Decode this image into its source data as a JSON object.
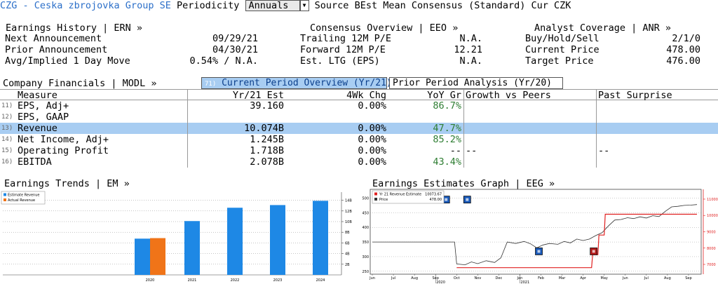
{
  "titlebar": {
    "ticker": "CZG - Ceska zbrojovka Group SE",
    "periodicity_label": "Periodicity",
    "periodicity_value": "Annuals",
    "source": "Source BEst Mean Consensus (Standard) Cur CZK"
  },
  "earnings_history": {
    "header": "Earnings History | ERN »",
    "rows": [
      {
        "label": "Next Announcement",
        "value": "09/29/21"
      },
      {
        "label": "Prior Announcement",
        "value": "04/30/21"
      },
      {
        "label": "Avg/Implied 1 Day Move",
        "value": "0.54% / N.A."
      }
    ]
  },
  "consensus_overview": {
    "header": "Consensus Overview | EEO »",
    "rows": [
      {
        "label": "Trailing 12M P/E",
        "value": "N.A."
      },
      {
        "label": "Forward 12M P/E",
        "value": "12.21"
      },
      {
        "label": "Est. LTG (EPS)",
        "value": "N.A."
      }
    ]
  },
  "analyst_coverage": {
    "header": "Analyst Coverage | ANR »",
    "rows": [
      {
        "label": "Buy/Hold/Sell",
        "value": "2/1/0"
      },
      {
        "label": "Current Price",
        "value": "478.00"
      },
      {
        "label": "Target Price",
        "value": "476.00"
      }
    ]
  },
  "company_financials": {
    "header": "Company Financials | MODL »",
    "tab_current_num": "71)",
    "tab_current": "Current Period Overview (Yr/21)",
    "tab_prior": "Prior Period Analysis (Yr/20)",
    "columns": [
      "Measure",
      "Yr/21 Est",
      "4Wk Chg",
      "YoY Gr",
      "Growth vs Peers",
      "Past Surprise"
    ],
    "rows": [
      {
        "num": "11)",
        "measure": "EPS, Adj+",
        "yr": "39.160",
        "wk": "0.00%",
        "yoy": "86.7%",
        "peer": "",
        "past": ""
      },
      {
        "num": "12)",
        "measure": "EPS, GAAP",
        "yr": "",
        "wk": "",
        "yoy": "",
        "peer": "",
        "past": ""
      },
      {
        "num": "13)",
        "measure": "Revenue",
        "yr": "10.074B",
        "wk": "0.00%",
        "yoy": "47.7%",
        "peer": "",
        "past": ""
      },
      {
        "num": "14)",
        "measure": "Net Income, Adj+",
        "yr": "1.245B",
        "wk": "0.00%",
        "yoy": "85.2%",
        "peer": "",
        "past": ""
      },
      {
        "num": "15)",
        "measure": "Operating Profit",
        "yr": "1.718B",
        "wk": "0.00%",
        "yoy": "--",
        "peer": "--",
        "past": "--"
      },
      {
        "num": "16)",
        "measure": "EBITDA",
        "yr": "2.078B",
        "wk": "0.00%",
        "yoy": "43.4%",
        "peer": "",
        "past": ""
      }
    ]
  },
  "earnings_trends": {
    "header": "Earnings Trends | EM »"
  },
  "earnings_estimates": {
    "header": "Earnings Estimates Graph | EEG »"
  },
  "colors": {
    "estimate": "#1e88e5",
    "actual": "#f07418",
    "highlight": "#a8cdf2",
    "green": "#2e7d32",
    "estimate_line": "#e02020",
    "price_line": "#333333",
    "marker_blue": "#1858b8",
    "marker_red": "#b01818"
  },
  "chart_data": [
    {
      "type": "bar",
      "legend": [
        "Estimate Revenue",
        "Actual Revenue"
      ],
      "legend_placement": "top-left",
      "categories": [
        "2020",
        "2021",
        "2022",
        "2023",
        "2024"
      ],
      "series": [
        {
          "name": "Estimate Revenue",
          "values": [
            6.8,
            10.1,
            12.6,
            13.1,
            13.9
          ]
        },
        {
          "name": "Actual Revenue",
          "values": [
            6.9,
            null,
            null,
            null,
            null
          ]
        }
      ],
      "y_ticks": [
        "2B",
        "4B",
        "6B",
        "8B",
        "10B",
        "12B",
        "14B"
      ],
      "ylim": [
        0,
        15
      ],
      "grid": true
    },
    {
      "type": "line",
      "legend": [
        {
          "name": "Yr 21 Revenue Estimate",
          "value": "10073.67"
        },
        {
          "name": "Price",
          "value": "478.00"
        }
      ],
      "legend_placement": "top-left",
      "x_ticks": [
        "Jun",
        "Jul",
        "Aug",
        "Sep",
        "Oct",
        "Nov",
        "Dec",
        "Jan",
        "Feb",
        "Mar",
        "Apr",
        "May",
        "Jun",
        "Jul",
        "Aug",
        "Sep"
      ],
      "x_years": [
        {
          "label": "2020",
          "at": 3
        },
        {
          "label": "2021",
          "at": 7
        }
      ],
      "left_ticks": [
        "250",
        "300",
        "350",
        "400",
        "450",
        "500"
      ],
      "right_ticks": [
        "7000",
        "8000",
        "9000",
        "10000",
        "11000"
      ],
      "left_range": [
        240,
        530
      ],
      "right_range": [
        6400,
        11600
      ],
      "price_series": [
        [
          0,
          350
        ],
        [
          3.9,
          350
        ],
        [
          4.0,
          275
        ],
        [
          4.4,
          272
        ],
        [
          4.7,
          282
        ],
        [
          5.0,
          276
        ],
        [
          5.4,
          286
        ],
        [
          5.8,
          280
        ],
        [
          6.1,
          296
        ],
        [
          6.4,
          350
        ],
        [
          6.8,
          345
        ],
        [
          7.2,
          352
        ],
        [
          7.5,
          344
        ],
        [
          7.8,
          330
        ],
        [
          8.1,
          340
        ],
        [
          8.4,
          345
        ],
        [
          8.8,
          342
        ],
        [
          9.1,
          352
        ],
        [
          9.4,
          347
        ],
        [
          9.7,
          360
        ],
        [
          10.0,
          355
        ],
        [
          10.3,
          360
        ],
        [
          10.6,
          372
        ],
        [
          10.9,
          382
        ],
        [
          11.2,
          405
        ],
        [
          11.5,
          425
        ],
        [
          11.8,
          427
        ],
        [
          12.1,
          433
        ],
        [
          12.4,
          430
        ],
        [
          12.7,
          436
        ],
        [
          13.0,
          432
        ],
        [
          13.3,
          440
        ],
        [
          13.6,
          437
        ],
        [
          13.9,
          455
        ],
        [
          14.2,
          470
        ],
        [
          14.5,
          472
        ],
        [
          14.8,
          475
        ],
        [
          15.1,
          476
        ],
        [
          15.4,
          478
        ]
      ],
      "estimate_series": [
        [
          4.0,
          6800
        ],
        [
          10.4,
          6800
        ],
        [
          10.45,
          7600
        ],
        [
          10.7,
          7600
        ],
        [
          10.75,
          8800
        ],
        [
          11.0,
          8800
        ],
        [
          11.05,
          10073.67
        ],
        [
          15.4,
          10073.67
        ]
      ],
      "markers": [
        {
          "x": 3.5,
          "y": 495,
          "axis": "left",
          "color": "blue"
        },
        {
          "x": 4.5,
          "y": 495,
          "axis": "left",
          "color": "blue"
        },
        {
          "x": 7.9,
          "y": 318,
          "axis": "left",
          "color": "blue"
        },
        {
          "x": 10.5,
          "y": 318,
          "axis": "left",
          "color": "red"
        }
      ]
    }
  ]
}
